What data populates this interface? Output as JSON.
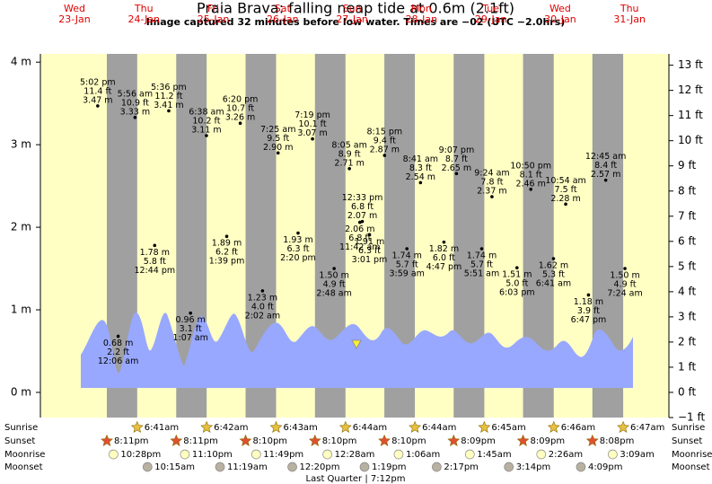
{
  "chart_data": {
    "type": "tide",
    "title": "Praia Brava: falling  neap tide at 0.6m (2.1ft)",
    "subtitle": "Image captured 32 minutes before low water. Times are −02 (UTC −2.0hrs)",
    "days": [
      {
        "weekday": "Wed",
        "date": "23-Jan"
      },
      {
        "weekday": "Thu",
        "date": "24-Jan"
      },
      {
        "weekday": "Fri",
        "date": "25-Jan"
      },
      {
        "weekday": "Sat",
        "date": "26-Jan"
      },
      {
        "weekday": "Sun",
        "date": "27-Jan"
      },
      {
        "weekday": "Mon",
        "date": "28-Jan"
      },
      {
        "weekday": "Tue",
        "date": "29-Jan"
      },
      {
        "weekday": "Wed",
        "date": "30-Jan"
      },
      {
        "weekday": "Thu",
        "date": "31-Jan"
      }
    ],
    "xlim": [
      -2.8,
      214.6
    ],
    "ylim": [
      -0.3048,
      4.1
    ],
    "yticks": [
      {
        "value": 0,
        "label": "0 m"
      },
      {
        "value": 1,
        "label": "1 m"
      },
      {
        "value": 2,
        "label": "2 m"
      },
      {
        "value": 3,
        "label": "3 m"
      },
      {
        "value": 4,
        "label": "4 m"
      }
    ],
    "y2lim": [
      -1,
      13.45
    ],
    "y2ticks": [
      {
        "value": -1,
        "label": "−1 ft"
      },
      {
        "value": 0,
        "label": "0 ft"
      },
      {
        "value": 1,
        "label": "1 ft"
      },
      {
        "value": 2,
        "label": "2 ft"
      },
      {
        "value": 3,
        "label": "3 ft"
      },
      {
        "value": 4,
        "label": "4 ft"
      },
      {
        "value": 5,
        "label": "5 ft"
      },
      {
        "value": 6,
        "label": "6 ft"
      },
      {
        "value": 7,
        "label": "7 ft"
      },
      {
        "value": 8,
        "label": "8 ft"
      },
      {
        "value": 9,
        "label": "9 ft"
      },
      {
        "value": 10,
        "label": "10 ft"
      },
      {
        "value": 11,
        "label": "11 ft"
      },
      {
        "value": 12,
        "label": "12 ft"
      },
      {
        "value": 13,
        "label": "13 ft"
      }
    ],
    "tides": [
      {
        "time": "5:02 pm",
        "ft_label": "11.4 ft",
        "value_label": "3.47 m",
        "value": 3.47,
        "x": 17.03
      },
      {
        "time": "12:06 am",
        "ft_label": "2.2 ft",
        "value_label": "0.68 m",
        "value": 0.68,
        "x": 24.1
      },
      {
        "time": "5:56 am",
        "ft_label": "10.9 ft",
        "value_label": "3.33 m",
        "value": 3.33,
        "x": 29.93
      },
      {
        "time": "12:44 pm",
        "ft_label": "5.8 ft",
        "value_label": "1.78 m",
        "value": 1.78,
        "x": 36.73
      },
      {
        "time": "5:36 pm",
        "ft_label": "11.2 ft",
        "value_label": "3.41 m",
        "value": 3.41,
        "x": 41.6
      },
      {
        "time": "1:07 am",
        "ft_label": "3.1 ft",
        "value_label": "0.96 m",
        "value": 0.96,
        "x": 49.12
      },
      {
        "time": "6:38 am",
        "ft_label": "10.2 ft",
        "value_label": "3.11 m",
        "value": 3.11,
        "x": 54.63
      },
      {
        "time": "1:39 pm",
        "ft_label": "6.2 ft",
        "value_label": "1.89 m",
        "value": 1.89,
        "x": 61.65
      },
      {
        "time": "6:20 pm",
        "ft_label": "10.7 ft",
        "value_label": "3.26 m",
        "value": 3.26,
        "x": 66.33
      },
      {
        "time": "2:02 am",
        "ft_label": "4.0 ft",
        "value_label": "1.23 m",
        "value": 1.23,
        "x": 74.03
      },
      {
        "time": "7:25 am",
        "ft_label": "9.5 ft",
        "value_label": "2.90 m",
        "value": 2.9,
        "x": 79.42
      },
      {
        "time": "2:20 pm",
        "ft_label": "6.3 ft",
        "value_label": "1.93 m",
        "value": 1.93,
        "x": 86.33
      },
      {
        "time": "7:19 pm",
        "ft_label": "10.1 ft",
        "value_label": "3.07 m",
        "value": 3.07,
        "x": 91.32
      },
      {
        "time": "2:48 am",
        "ft_label": "4.9 ft",
        "value_label": "1.50 m",
        "value": 1.5,
        "x": 98.8
      },
      {
        "time": "8:05 am",
        "ft_label": "8.9 ft",
        "value_label": "2.71 m",
        "value": 2.71,
        "x": 104.08
      },
      {
        "time": "11:42 am",
        "ft_label": "6.8 ft",
        "value_label": "2.06 m",
        "value": 2.06,
        "x": 107.7
      },
      {
        "time": "12:33 pm",
        "ft_label": "6.8 ft",
        "value_label": "2.07 m",
        "value": 2.07,
        "x": 108.55
      },
      {
        "time": "3:01 pm",
        "ft_label": "6.3 ft",
        "value_label": "1.91 m",
        "value": 1.91,
        "x": 111.02
      },
      {
        "time": "8:15 pm",
        "ft_label": "9.4 ft",
        "value_label": "2.87 m",
        "value": 2.87,
        "x": 116.25
      },
      {
        "time": "3:59 am",
        "ft_label": "5.7 ft",
        "value_label": "1.74 m",
        "value": 1.74,
        "x": 123.98
      },
      {
        "time": "8:41 am",
        "ft_label": "8.3 ft",
        "value_label": "2.54 m",
        "value": 2.54,
        "x": 128.68
      },
      {
        "time": "4:47 pm",
        "ft_label": "6.0 ft",
        "value_label": "1.82 m",
        "value": 1.82,
        "x": 136.78
      },
      {
        "time": "9:07 pm",
        "ft_label": "8.7 ft",
        "value_label": "2.65 m",
        "value": 2.65,
        "x": 141.12
      },
      {
        "time": "5:51 am",
        "ft_label": "5.7 ft",
        "value_label": "1.74 m",
        "value": 1.74,
        "x": 149.85
      },
      {
        "time": "9:24 am",
        "ft_label": "7.8 ft",
        "value_label": "2.37 m",
        "value": 2.37,
        "x": 153.4
      },
      {
        "time": "6:03 pm",
        "ft_label": "5.0 ft",
        "value_label": "1.51 m",
        "value": 1.51,
        "x": 162.05
      },
      {
        "time": "10:50 pm",
        "ft_label": "8.1 ft",
        "value_label": "2.46 m",
        "value": 2.46,
        "x": 166.83
      },
      {
        "time": "6:41 am",
        "ft_label": "5.3 ft",
        "value_label": "1.62 m",
        "value": 1.62,
        "x": 174.68
      },
      {
        "time": "10:54 am",
        "ft_label": "7.5 ft",
        "value_label": "2.28 m",
        "value": 2.28,
        "x": 178.9
      },
      {
        "time": "6:47 pm",
        "ft_label": "3.9 ft",
        "value_label": "1.18 m",
        "value": 1.18,
        "x": 186.78
      },
      {
        "time": "12:45 am",
        "ft_label": "8.4 ft",
        "value_label": "2.57 m",
        "value": 2.57,
        "x": 192.75
      },
      {
        "time": "7:24 am",
        "ft_label": "4.9 ft",
        "value_label": "1.50 m",
        "value": 1.5,
        "x": 199.4
      }
    ],
    "sunrise": {
      "name": "Sunrise",
      "events": [
        {
          "label": "6:41am",
          "x": 30.68
        },
        {
          "label": "6:42am",
          "x": 54.7
        },
        {
          "label": "6:43am",
          "x": 78.72
        },
        {
          "label": "6:44am",
          "x": 102.73
        },
        {
          "label": "6:44am",
          "x": 126.73
        },
        {
          "label": "6:45am",
          "x": 150.75
        },
        {
          "label": "6:46am",
          "x": 174.77
        },
        {
          "label": "6:47am",
          "x": 198.78
        }
      ]
    },
    "sunset": {
      "name": "Sunset",
      "events": [
        {
          "label": "8:11pm",
          "x": 20.18
        },
        {
          "label": "8:11pm",
          "x": 44.18
        },
        {
          "label": "8:10pm",
          "x": 68.17
        },
        {
          "label": "8:10pm",
          "x": 92.17
        },
        {
          "label": "8:10pm",
          "x": 116.17
        },
        {
          "label": "8:09pm",
          "x": 140.15
        },
        {
          "label": "8:09pm",
          "x": 164.15
        },
        {
          "label": "8:08pm",
          "x": 188.13
        }
      ]
    },
    "moonrise": {
      "name": "Moonrise",
      "events": [
        {
          "label": "10:28pm",
          "x": 22.47
        },
        {
          "label": "11:10pm",
          "x": 47.17
        },
        {
          "label": "11:49pm",
          "x": 71.82
        },
        {
          "label": "12:28am",
          "x": 96.47
        },
        {
          "label": "1:06am",
          "x": 121.1
        },
        {
          "label": "1:45am",
          "x": 145.75
        },
        {
          "label": "2:26am",
          "x": 170.43
        },
        {
          "label": "3:09am",
          "x": 195.15
        }
      ]
    },
    "moonset": {
      "name": "Moonset",
      "events": [
        {
          "label": "10:15am",
          "x": 34.25
        },
        {
          "label": "11:19am",
          "x": 59.32
        },
        {
          "label": "12:20pm",
          "x": 84.33
        },
        {
          "label": "1:19pm",
          "x": 109.32
        },
        {
          "label": "2:17pm",
          "x": 134.28
        },
        {
          "label": "3:14pm",
          "x": 159.23
        },
        {
          "label": "4:09pm",
          "x": 184.15
        }
      ]
    },
    "moon_phase": "Last Quarter | 7:12pm"
  }
}
